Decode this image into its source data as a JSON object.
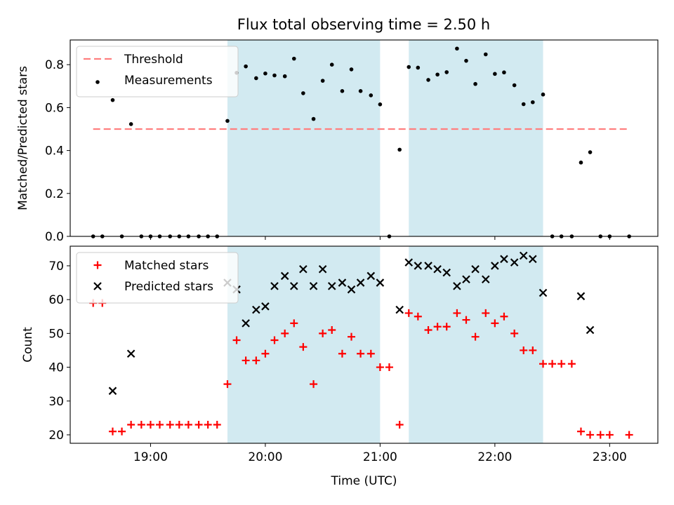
{
  "figure": {
    "title": "Flux total observing time = 2.50 h"
  },
  "chart_data": [
    {
      "type": "scatter",
      "title": "Flux total observing time = 2.50 h",
      "xlabel": "",
      "ylabel": "Matched/Predicted stars",
      "x_unit": "hours (UTC)",
      "xlim": [
        18.3,
        23.42
      ],
      "ylim": [
        0.0,
        0.915
      ],
      "xticks": [
        19,
        20,
        21,
        22,
        23
      ],
      "xtick_labels": [
        "19:00",
        "20:00",
        "21:00",
        "22:00",
        "23:00"
      ],
      "yticks": [
        0.0,
        0.2,
        0.4,
        0.6,
        0.8
      ],
      "ytick_labels": [
        "0.0",
        "0.2",
        "0.4",
        "0.6",
        "0.8"
      ],
      "show_xtick_labels": false,
      "grid": false,
      "legend_placement": "upper-left",
      "shaded_regions": [
        [
          19.67,
          21.0
        ],
        [
          21.25,
          22.42
        ]
      ],
      "shade_color": "#add8e6",
      "threshold": {
        "name": "Threshold",
        "y": 0.5,
        "x_range": [
          18.5,
          23.17
        ],
        "color": "#ff7f7f"
      },
      "series": [
        {
          "name": "Measurements",
          "color": "#000000",
          "marker": "dot",
          "x": [
            18.5,
            18.58,
            18.67,
            18.75,
            18.83,
            18.92,
            19.0,
            19.08,
            19.17,
            19.25,
            19.33,
            19.42,
            19.5,
            19.58,
            19.67,
            19.75,
            19.83,
            19.92,
            20.0,
            20.08,
            20.17,
            20.25,
            20.33,
            20.42,
            20.5,
            20.58,
            20.67,
            20.75,
            20.83,
            20.92,
            21.0,
            21.08,
            21.17,
            21.25,
            21.33,
            21.42,
            21.5,
            21.58,
            21.67,
            21.75,
            21.83,
            21.92,
            22.0,
            22.08,
            22.17,
            22.25,
            22.33,
            22.42,
            22.5,
            22.58,
            22.67,
            22.75,
            22.83,
            22.92,
            23.0,
            23.17
          ],
          "values": [
            0.0,
            0.0,
            0.635,
            0.0,
            0.523,
            0.0,
            0.0,
            0.0,
            0.0,
            0.0,
            0.0,
            0.0,
            0.0,
            0.0,
            0.538,
            0.762,
            0.792,
            0.737,
            0.759,
            0.75,
            0.746,
            0.828,
            0.667,
            0.547,
            0.725,
            0.8,
            0.677,
            0.778,
            0.677,
            0.657,
            0.615,
            0.0,
            0.404,
            0.789,
            0.786,
            0.729,
            0.754,
            0.765,
            0.875,
            0.818,
            0.71,
            0.848,
            0.757,
            0.764,
            0.704,
            0.616,
            0.625,
            0.661,
            0.0,
            0.0,
            0.0,
            0.344,
            0.392,
            0.0,
            0.0,
            0.0
          ]
        }
      ]
    },
    {
      "type": "scatter",
      "title": "",
      "xlabel": "Time (UTC)",
      "ylabel": "Count",
      "x_unit": "hours (UTC)",
      "xlim": [
        18.3,
        23.42
      ],
      "ylim": [
        17.5,
        75.8
      ],
      "xticks": [
        19,
        20,
        21,
        22,
        23
      ],
      "xtick_labels": [
        "19:00",
        "20:00",
        "21:00",
        "22:00",
        "23:00"
      ],
      "yticks": [
        20,
        30,
        40,
        50,
        60,
        70
      ],
      "ytick_labels": [
        "20",
        "30",
        "40",
        "50",
        "60",
        "70"
      ],
      "show_xtick_labels": true,
      "grid": false,
      "legend_placement": "upper-left",
      "shaded_regions": [
        [
          19.67,
          21.0
        ],
        [
          21.25,
          22.42
        ]
      ],
      "shade_color": "#add8e6",
      "series": [
        {
          "name": "Matched stars",
          "color": "#ff0000",
          "marker": "plus",
          "x": [
            18.5,
            18.58,
            18.67,
            18.75,
            18.83,
            18.92,
            19.0,
            19.08,
            19.17,
            19.25,
            19.33,
            19.42,
            19.5,
            19.58,
            19.67,
            19.75,
            19.83,
            19.92,
            20.0,
            20.08,
            20.17,
            20.25,
            20.33,
            20.42,
            20.5,
            20.58,
            20.67,
            20.75,
            20.83,
            20.92,
            21.0,
            21.08,
            21.17,
            21.25,
            21.33,
            21.42,
            21.5,
            21.58,
            21.67,
            21.75,
            21.83,
            21.92,
            22.0,
            22.08,
            22.17,
            22.25,
            22.33,
            22.42,
            22.5,
            22.58,
            22.67,
            22.75,
            22.83,
            22.92,
            23.0,
            23.17
          ],
          "values": [
            59,
            59,
            21,
            21,
            23,
            23,
            23,
            23,
            23,
            23,
            23,
            23,
            23,
            23,
            35,
            48,
            42,
            42,
            44,
            48,
            50,
            53,
            46,
            35,
            50,
            51,
            44,
            49,
            44,
            44,
            40,
            40,
            23,
            56,
            55,
            51,
            52,
            52,
            56,
            54,
            49,
            56,
            53,
            55,
            50,
            45,
            45,
            41,
            41,
            41,
            41,
            21,
            20,
            20,
            20,
            20
          ]
        },
        {
          "name": "Predicted stars",
          "color": "#000000",
          "marker": "x",
          "x": [
            18.67,
            18.83,
            19.67,
            19.75,
            19.83,
            19.92,
            20.0,
            20.08,
            20.17,
            20.25,
            20.33,
            20.42,
            20.5,
            20.58,
            20.67,
            20.75,
            20.83,
            20.92,
            21.0,
            21.17,
            21.25,
            21.33,
            21.42,
            21.5,
            21.58,
            21.67,
            21.75,
            21.83,
            21.92,
            22.0,
            22.08,
            22.17,
            22.25,
            22.33,
            22.42,
            22.75,
            22.83
          ],
          "values": [
            33,
            44,
            65,
            63,
            53,
            57,
            58,
            64,
            67,
            64,
            69,
            64,
            69,
            64,
            65,
            63,
            65,
            67,
            65,
            57,
            71,
            70,
            70,
            69,
            68,
            64,
            66,
            69,
            66,
            70,
            72,
            71,
            73,
            72,
            62,
            61,
            51
          ]
        }
      ]
    }
  ]
}
